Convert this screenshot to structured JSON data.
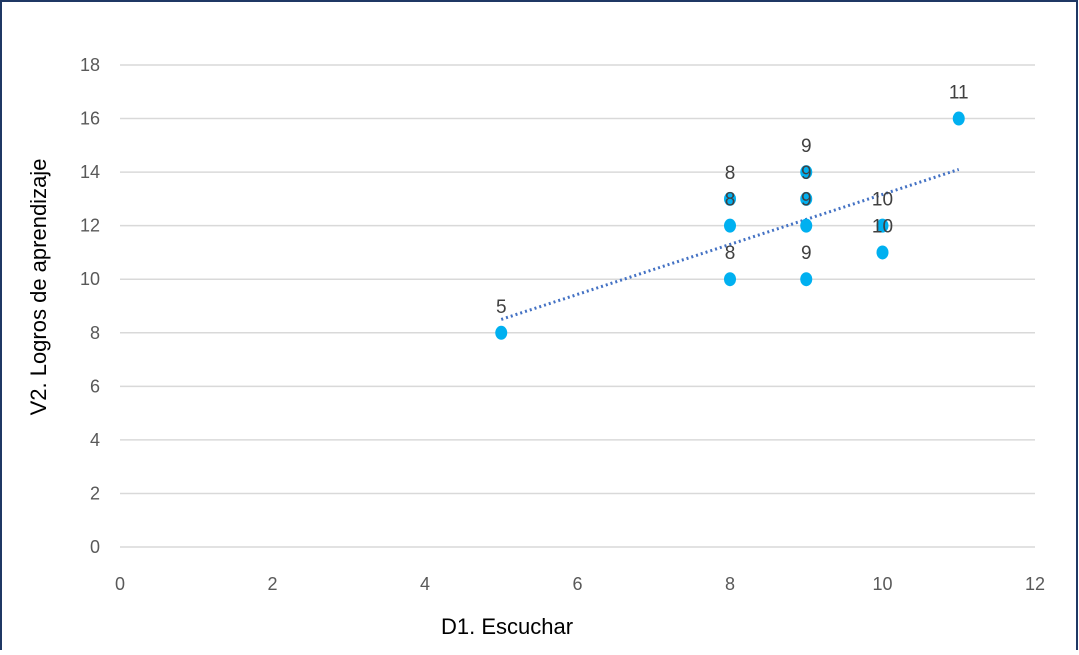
{
  "chart_data": {
    "type": "scatter",
    "title": "",
    "xlabel": "D1. Escuchar",
    "ylabel": "V2. Logros de aprendizaje",
    "xlim": [
      0,
      12
    ],
    "ylim": [
      0,
      18
    ],
    "x_ticks": [
      "0",
      "2",
      "4",
      "6",
      "8",
      "10",
      "12"
    ],
    "y_ticks": [
      "0",
      "2",
      "4",
      "6",
      "8",
      "10",
      "12",
      "14",
      "16",
      "18"
    ],
    "grid": "horizontal",
    "legend": "none",
    "points": [
      {
        "x": 5,
        "y": 8,
        "label": "5"
      },
      {
        "x": 8,
        "y": 13,
        "label": "8"
      },
      {
        "x": 8,
        "y": 12,
        "label": "8"
      },
      {
        "x": 8,
        "y": 10,
        "label": "8"
      },
      {
        "x": 9,
        "y": 14,
        "label": "9"
      },
      {
        "x": 9,
        "y": 13,
        "label": "9"
      },
      {
        "x": 9,
        "y": 12,
        "label": "9"
      },
      {
        "x": 9,
        "y": 10,
        "label": "9"
      },
      {
        "x": 10,
        "y": 12,
        "label": "10"
      },
      {
        "x": 10,
        "y": 11,
        "label": "10"
      },
      {
        "x": 11,
        "y": 16,
        "label": "11"
      }
    ],
    "trendline": {
      "type": "linear",
      "dotted": true,
      "from": {
        "x": 5,
        "y": 8.5
      },
      "to": {
        "x": 11,
        "y": 14.1
      }
    },
    "colors": {
      "points": "#00B0F0",
      "trendline": "#4472C4",
      "grid": "#D9D9D9",
      "border": "#1F3864"
    }
  }
}
